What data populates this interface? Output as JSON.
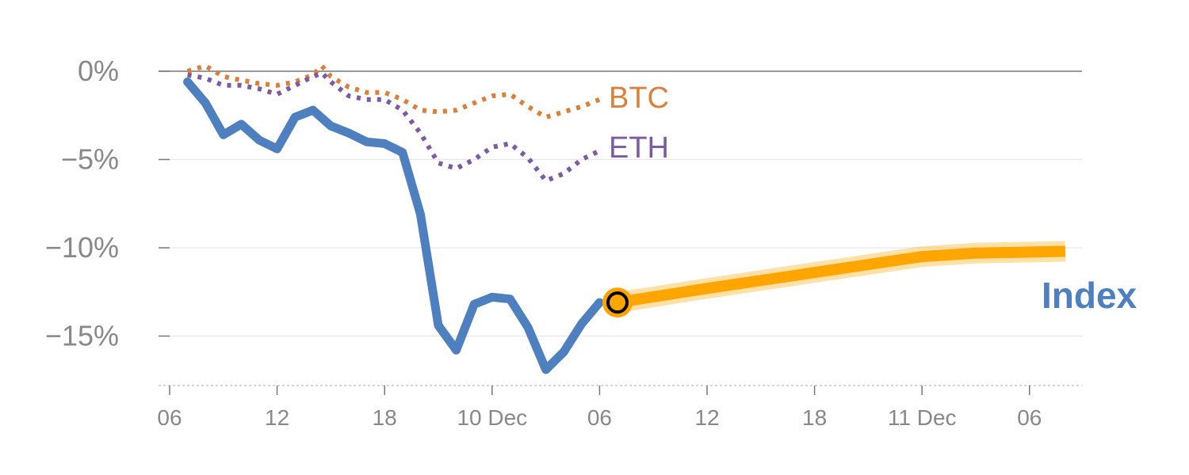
{
  "chart_data": {
    "type": "line",
    "title": "",
    "xlabel": "",
    "ylabel": "",
    "x_ticks": [
      "06",
      "12",
      "18",
      "10 Dec",
      "06",
      "12",
      "18",
      "11 Dec",
      "06"
    ],
    "y_ticks": [
      "0%",
      "−5%",
      "−10%",
      "−15%"
    ],
    "y_tick_values": [
      0,
      -5,
      -10,
      -15
    ],
    "ylim": [
      -17.6,
      2.2
    ],
    "x_unit": "hours from 06:00 (first tick)",
    "xlim": [
      0,
      51
    ],
    "grid": true,
    "series": [
      {
        "name": "BTC",
        "color": "#d9813a",
        "style": "dotted",
        "points": [
          [
            1,
            0
          ],
          [
            2,
            0.3
          ],
          [
            3,
            -0.3
          ],
          [
            4,
            -0.5
          ],
          [
            5,
            -0.7
          ],
          [
            6,
            -0.8
          ],
          [
            7,
            -0.6
          ],
          [
            8,
            -0.2
          ],
          [
            8.5,
            0.3
          ],
          [
            9,
            -0.3
          ],
          [
            10,
            -0.9
          ],
          [
            11,
            -1.2
          ],
          [
            12,
            -1.2
          ],
          [
            13,
            -1.6
          ],
          [
            14,
            -2.2
          ],
          [
            15,
            -2.3
          ],
          [
            16,
            -2.2
          ],
          [
            17,
            -1.8
          ],
          [
            18,
            -1.4
          ],
          [
            19,
            -1.3
          ],
          [
            20,
            -2.0
          ],
          [
            21,
            -2.6
          ],
          [
            22,
            -2.3
          ],
          [
            23,
            -2.0
          ],
          [
            24,
            -1.6
          ]
        ]
      },
      {
        "name": "ETH",
        "color": "#7e5aa2",
        "style": "dotted",
        "points": [
          [
            1,
            -0.2
          ],
          [
            2,
            -0.4
          ],
          [
            3,
            -0.8
          ],
          [
            4,
            -0.8
          ],
          [
            5,
            -1.0
          ],
          [
            6,
            -1.3
          ],
          [
            7,
            -0.8
          ],
          [
            8,
            -0.3
          ],
          [
            8.5,
            -0.1
          ],
          [
            9,
            -0.6
          ],
          [
            10,
            -1.4
          ],
          [
            11,
            -1.6
          ],
          [
            12,
            -1.6
          ],
          [
            13,
            -2.2
          ],
          [
            14,
            -3.5
          ],
          [
            15,
            -5.2
          ],
          [
            16,
            -5.5
          ],
          [
            17,
            -5.0
          ],
          [
            18,
            -4.3
          ],
          [
            19,
            -4.1
          ],
          [
            20,
            -4.9
          ],
          [
            21,
            -6.2
          ],
          [
            22,
            -5.8
          ],
          [
            23,
            -5.0
          ],
          [
            24,
            -4.5
          ]
        ]
      },
      {
        "name": "Index",
        "color": "#4e7fbf",
        "style": "solid",
        "points": [
          [
            1,
            -0.6
          ],
          [
            2,
            -1.8
          ],
          [
            3,
            -3.6
          ],
          [
            4,
            -3.0
          ],
          [
            5,
            -3.9
          ],
          [
            6,
            -4.4
          ],
          [
            7,
            -2.6
          ],
          [
            8,
            -2.2
          ],
          [
            9,
            -3.1
          ],
          [
            10,
            -3.5
          ],
          [
            11,
            -4.0
          ],
          [
            12,
            -4.1
          ],
          [
            13,
            -4.6
          ],
          [
            14,
            -8.1
          ],
          [
            15,
            -14.4
          ],
          [
            16,
            -15.8
          ],
          [
            17,
            -13.2
          ],
          [
            18,
            -12.8
          ],
          [
            19,
            -12.9
          ],
          [
            20,
            -14.5
          ],
          [
            21,
            -16.9
          ],
          [
            22,
            -15.9
          ],
          [
            23,
            -14.3
          ],
          [
            24,
            -13.1
          ]
        ]
      }
    ],
    "forecast": {
      "color": "#ffa500",
      "marker_point": [
        25,
        -13.1
      ],
      "points": [
        [
          25,
          -13.1
        ],
        [
          30,
          -12.3
        ],
        [
          36,
          -11.4
        ],
        [
          42,
          -10.5
        ],
        [
          45,
          -10.3
        ],
        [
          50,
          -10.2
        ]
      ]
    },
    "labels": {
      "btc": "BTC",
      "eth": "ETH",
      "index": "Index"
    }
  }
}
